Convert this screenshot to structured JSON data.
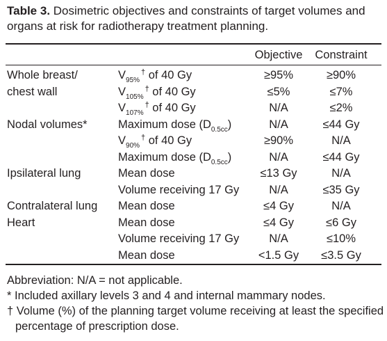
{
  "title": {
    "label": "Table 3.",
    "text": " Dosimetric objectives and constraints of target volumes and organs at risk for radiotherapy treatment planning."
  },
  "table": {
    "headers": [
      "Objective",
      "Constraint"
    ],
    "rows": [
      {
        "organ": "Whole breast/",
        "parameter": {
          "text": "V",
          "sub": "95%",
          "sup": "†",
          "after": " of 40 Gy"
        },
        "objective": "≥95%",
        "constraint": "≥90%"
      },
      {
        "organ": "chest wall",
        "parameter": {
          "text": "V",
          "sub": "105%",
          "sup": "†",
          "after": " of 40 Gy"
        },
        "objective": "≤5%",
        "constraint": "≤7%"
      },
      {
        "organ": null,
        "parameter": {
          "text": "V",
          "sub": "107%",
          "sup": "†",
          "after": " of 40 Gy"
        },
        "objective": "N/A",
        "constraint": "≤2%"
      },
      {
        "organ": "Nodal volumes*",
        "parameter": {
          "text": "Maximum dose (D",
          "sub": "0.5cc",
          "after": ")"
        },
        "objective": "N/A",
        "constraint": "≤44 Gy"
      },
      {
        "organ": null,
        "parameter": {
          "text": "V",
          "sub": "90%",
          "sup": "†",
          "after": " of 40 Gy"
        },
        "objective": "≥90%",
        "constraint": "N/A"
      },
      {
        "organ": null,
        "parameter": {
          "text": "Maximum dose (D",
          "sub": "0.5cc",
          "after": ")"
        },
        "objective": "N/A",
        "constraint": "≤44 Gy"
      },
      {
        "organ": "Ipsilateral lung",
        "parameter": {
          "text": "Mean dose"
        },
        "objective": "≤13 Gy",
        "constraint": "N/A"
      },
      {
        "organ": null,
        "parameter": {
          "text": "Volume receiving 17 Gy"
        },
        "objective": "N/A",
        "constraint": "≤35 Gy"
      },
      {
        "organ": "Contralateral lung",
        "parameter": {
          "text": "Mean dose"
        },
        "objective": "≤4 Gy",
        "constraint": "N/A"
      },
      {
        "organ": "Heart",
        "parameter": {
          "text": "Mean dose"
        },
        "objective": "≤4 Gy",
        "constraint": "≤6 Gy"
      },
      {
        "organ": null,
        "parameter": {
          "text": "Volume receiving 17 Gy"
        },
        "objective": "N/A",
        "constraint": "≤10%"
      },
      {
        "organ": null,
        "parameter": {
          "text": "Mean dose"
        },
        "objective": "<1.5 Gy",
        "constraint": "≤3.5 Gy"
      }
    ]
  },
  "footnotes": [
    "Abbreviation: N/A = not applicable.",
    "* Included axillary levels 3 and 4 and internal mammary nodes.",
    "† Volume (%) of the planning target volume receiving at least the specified percentage of prescription dose."
  ]
}
